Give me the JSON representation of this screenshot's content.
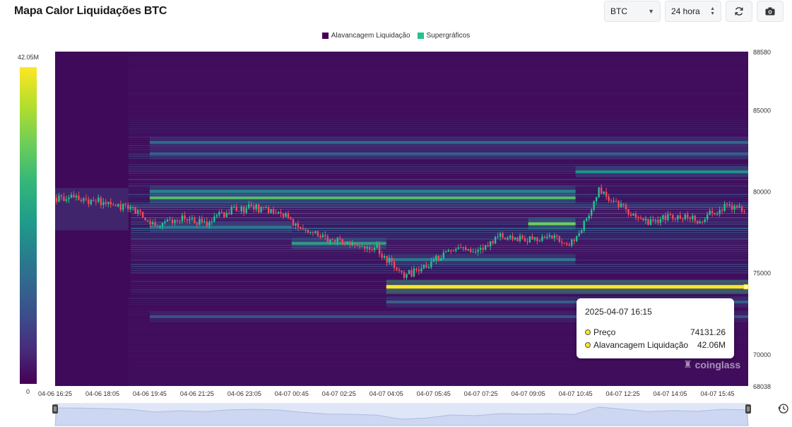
{
  "page": {
    "title": "Mapa Calor Liquidações BTC"
  },
  "toolbar": {
    "coin_value": "BTC",
    "coin_caret": "▼",
    "range_value": "24 hora",
    "range_arrows": "⌃⌄",
    "refresh_icon": "refresh-icon",
    "screenshot_icon": "camera-icon"
  },
  "legend": [
    {
      "label": "Alavancagem Liquidação",
      "color": "#440154"
    },
    {
      "label": "Supergráficos",
      "color": "#21c48d"
    }
  ],
  "colorbar": {
    "max_label": "42.05M",
    "min_label": "0"
  },
  "tooltip": {
    "time": "2025-04-07 16:15",
    "rows": [
      {
        "label": "Preço",
        "value": "74131.26"
      },
      {
        "label": "Alavancagem Liquidação",
        "value": "42.06M"
      }
    ]
  },
  "watermark": "coinglass",
  "chart_data": {
    "type": "heatmap",
    "title": "Mapa Calor Liquidações BTC",
    "x_ticks": [
      "04-06 16:25",
      "04-06 18:05",
      "04-06 19:45",
      "04-06 21:25",
      "04-06 23:05",
      "04-07 00:45",
      "04-07 02:25",
      "04-07 04:05",
      "04-07 05:45",
      "04-07 07:25",
      "04-07 09:05",
      "04-07 10:45",
      "04-07 12:25",
      "04-07 14:05",
      "04-07 15:45"
    ],
    "y_ticks": [
      88580,
      85000,
      80000,
      75000,
      70000,
      68038
    ],
    "ylim": [
      68038,
      88580
    ],
    "color_scale": {
      "min": 0,
      "max": 42050000,
      "palette": "viridis"
    },
    "price_series": {
      "name": "Preço",
      "x": [
        "04-06 16:25",
        "04-06 17:15",
        "04-06 18:05",
        "04-06 18:55",
        "04-06 19:45",
        "04-06 20:35",
        "04-06 21:25",
        "04-06 22:15",
        "04-06 23:05",
        "04-06 23:55",
        "04-07 00:45",
        "04-07 01:35",
        "04-07 02:25",
        "04-07 03:15",
        "04-07 04:05",
        "04-07 04:55",
        "04-07 05:45",
        "04-07 06:35",
        "04-07 07:25",
        "04-07 08:15",
        "04-07 09:05",
        "04-07 09:55",
        "04-07 10:45",
        "04-07 11:35",
        "04-07 12:25",
        "04-07 13:15",
        "04-07 14:05",
        "04-07 14:55",
        "04-07 15:45"
      ],
      "y": [
        79600,
        79500,
        79300,
        78900,
        77900,
        78400,
        78000,
        78800,
        79000,
        78700,
        77700,
        77000,
        76900,
        76500,
        74800,
        75300,
        76600,
        76300,
        77200,
        77000,
        77100,
        76800,
        80000,
        79000,
        78000,
        78500,
        78200,
        79000,
        78800
      ]
    },
    "bands": [
      {
        "price": 74131.26,
        "intensity": 1.0,
        "from": "04-07 04:05",
        "to": "04-07 15:45"
      },
      {
        "price": 79600,
        "intensity": 0.72,
        "from": "04-06 19:45",
        "to": "04-07 10:45"
      },
      {
        "price": 80000,
        "intensity": 0.45,
        "from": "04-06 19:45",
        "to": "04-07 10:45"
      },
      {
        "price": 81200,
        "intensity": 0.5,
        "from": "04-07 10:45",
        "to": "04-07 15:45"
      },
      {
        "price": 78000,
        "intensity": 0.78,
        "from": "04-07 09:05",
        "to": "04-07 10:45"
      },
      {
        "price": 76800,
        "intensity": 0.55,
        "from": "04-07 00:45",
        "to": "04-07 04:05"
      },
      {
        "price": 77800,
        "intensity": 0.4,
        "from": "04-06 19:45",
        "to": "04-07 00:45"
      },
      {
        "price": 83000,
        "intensity": 0.35,
        "from": "04-06 19:45",
        "to": "04-07 15:45"
      },
      {
        "price": 82300,
        "intensity": 0.3,
        "from": "04-06 19:45",
        "to": "04-07 15:45"
      },
      {
        "price": 73200,
        "intensity": 0.3,
        "from": "04-07 04:05",
        "to": "04-07 15:45"
      },
      {
        "price": 75800,
        "intensity": 0.42,
        "from": "04-07 04:05",
        "to": "04-07 10:45"
      },
      {
        "price": 72300,
        "intensity": 0.25,
        "from": "04-06 19:45",
        "to": "04-07 15:45"
      }
    ]
  }
}
